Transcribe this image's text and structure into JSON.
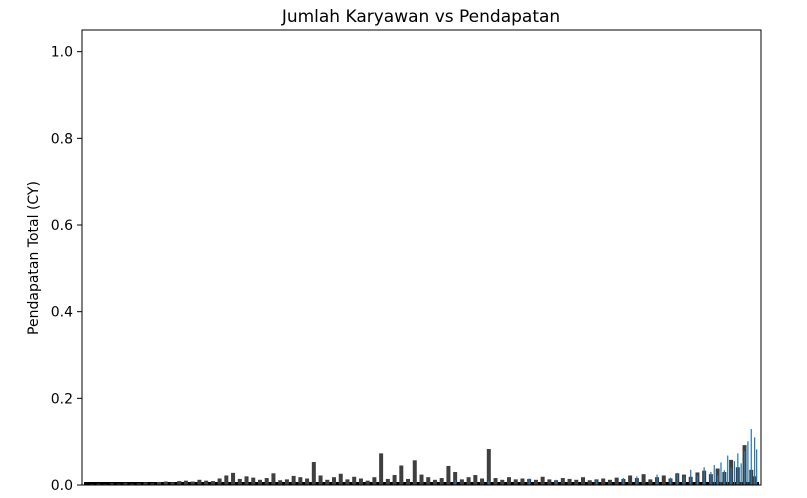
{
  "chart_data": {
    "type": "bar",
    "title": "Jumlah Karyawan vs Pendapatan",
    "xlabel": "",
    "ylabel": "Pendapatan Total (CY)",
    "ylim": [
      0,
      1.05
    ],
    "yticks": [
      0.0,
      0.2,
      0.4,
      0.6,
      0.8,
      1.0
    ],
    "ytick_labels": [
      "0.0",
      "0.2",
      "0.4",
      "0.6",
      "0.8",
      "1.0"
    ],
    "grid": false,
    "colors": {
      "dark_bars": "#3f3f3f",
      "blue_bars": "#1f77b4",
      "axis": "#000000"
    },
    "series": [
      {
        "color": "#3f3f3f",
        "x": [
          0.01,
          0.02,
          0.03,
          0.04,
          0.05,
          0.06,
          0.07,
          0.08,
          0.09,
          0.1,
          0.11,
          0.12,
          0.13,
          0.14,
          0.15,
          0.16,
          0.17,
          0.18,
          0.19,
          0.2,
          0.21,
          0.22,
          0.23,
          0.24,
          0.25,
          0.26,
          0.27,
          0.28,
          0.29,
          0.3,
          0.31,
          0.32,
          0.33,
          0.34,
          0.35,
          0.36,
          0.37,
          0.38,
          0.39,
          0.4,
          0.41,
          0.42,
          0.43,
          0.44,
          0.45,
          0.46,
          0.47,
          0.48,
          0.49,
          0.5,
          0.51,
          0.52,
          0.53,
          0.54,
          0.55,
          0.56,
          0.57,
          0.58,
          0.59,
          0.6,
          0.61,
          0.62,
          0.63,
          0.64,
          0.65,
          0.66,
          0.67,
          0.68,
          0.69,
          0.7,
          0.71,
          0.72,
          0.73,
          0.74,
          0.75,
          0.76,
          0.77,
          0.78,
          0.79,
          0.8,
          0.81,
          0.82,
          0.83,
          0.84,
          0.85,
          0.86,
          0.87,
          0.88,
          0.89,
          0.9,
          0.91,
          0.92,
          0.93,
          0.94,
          0.95,
          0.96,
          0.97,
          0.98,
          0.99,
          0.995
        ],
        "values": [
          0.002,
          0.003,
          0.002,
          0.004,
          0.003,
          0.005,
          0.003,
          0.004,
          0.006,
          0.004,
          0.007,
          0.008,
          0.006,
          0.009,
          0.01,
          0.008,
          0.012,
          0.01,
          0.009,
          0.015,
          0.022,
          0.028,
          0.014,
          0.02,
          0.017,
          0.012,
          0.016,
          0.027,
          0.011,
          0.013,
          0.021,
          0.018,
          0.015,
          0.053,
          0.022,
          0.012,
          0.018,
          0.026,
          0.013,
          0.019,
          0.015,
          0.01,
          0.018,
          0.073,
          0.014,
          0.023,
          0.045,
          0.014,
          0.057,
          0.024,
          0.018,
          0.012,
          0.016,
          0.044,
          0.03,
          0.013,
          0.018,
          0.023,
          0.015,
          0.083,
          0.016,
          0.012,
          0.018,
          0.013,
          0.015,
          0.014,
          0.012,
          0.019,
          0.013,
          0.011,
          0.016,
          0.014,
          0.012,
          0.018,
          0.011,
          0.013,
          0.015,
          0.012,
          0.017,
          0.014,
          0.022,
          0.016,
          0.025,
          0.013,
          0.018,
          0.022,
          0.015,
          0.027,
          0.024,
          0.019,
          0.029,
          0.033,
          0.025,
          0.038,
          0.03,
          0.058,
          0.041,
          0.092,
          0.035,
          0.02
        ]
      },
      {
        "color": "#1f77b4",
        "x": [
          0.55,
          0.6,
          0.66,
          0.7,
          0.76,
          0.8,
          0.82,
          0.85,
          0.87,
          0.88,
          0.89,
          0.9,
          0.91,
          0.92,
          0.93,
          0.935,
          0.94,
          0.945,
          0.95,
          0.955,
          0.96,
          0.965,
          0.97,
          0.975,
          0.98,
          0.985,
          0.99,
          0.995,
          0.998
        ],
        "values": [
          0.012,
          0.01,
          0.015,
          0.012,
          0.011,
          0.016,
          0.02,
          0.024,
          0.017,
          0.028,
          0.019,
          0.035,
          0.022,
          0.041,
          0.03,
          0.046,
          0.022,
          0.052,
          0.034,
          0.068,
          0.04,
          0.055,
          0.073,
          0.05,
          0.078,
          0.101,
          0.129,
          0.11,
          0.082
        ]
      }
    ]
  }
}
